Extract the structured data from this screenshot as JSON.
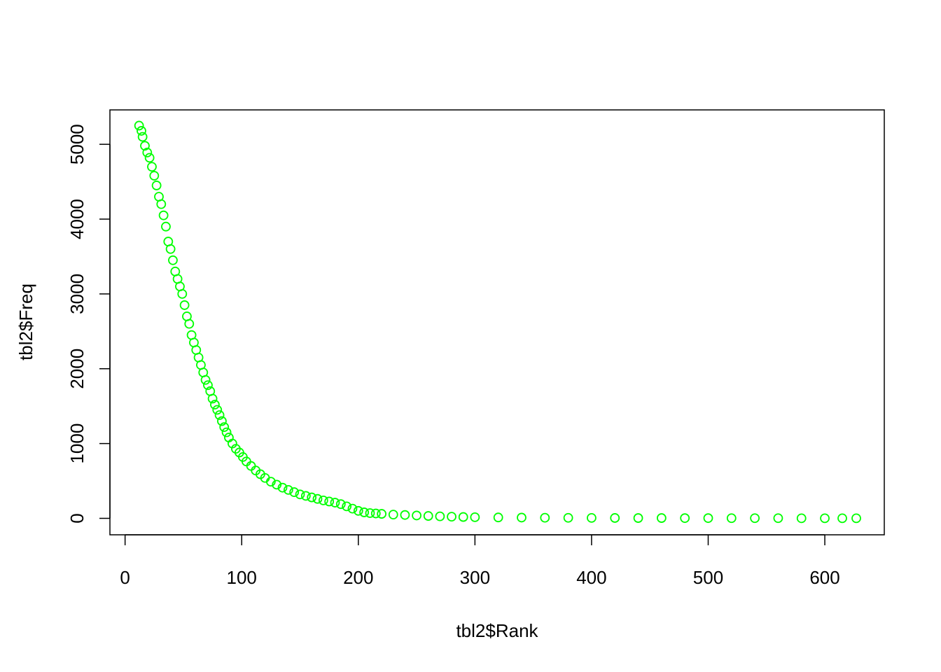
{
  "chart_data": {
    "type": "scatter",
    "title": "",
    "xlabel": "tbl2$Rank",
    "ylabel": "tbl2$Freq",
    "xlim": [
      -13,
      651
    ],
    "ylim": [
      -220,
      5460
    ],
    "x_ticks": [
      0,
      100,
      200,
      300,
      400,
      500,
      600
    ],
    "y_ticks": [
      0,
      1000,
      2000,
      3000,
      4000,
      5000
    ],
    "x_tick_labels": [
      "0",
      "100",
      "200",
      "300",
      "400",
      "500",
      "600"
    ],
    "y_tick_labels": [
      "0",
      "1000",
      "2000",
      "3000",
      "4000",
      "5000"
    ],
    "marker": "open-circle",
    "point_color": "#00ff00",
    "axis_color": "#000000",
    "grid": false,
    "legend": "none",
    "series": [
      {
        "x": [
          12,
          14,
          15,
          17,
          19,
          21,
          23,
          25,
          27,
          29,
          31,
          33,
          35,
          37,
          39,
          41,
          43,
          45,
          47,
          49,
          51,
          53,
          55,
          57,
          59,
          61,
          63,
          65,
          67,
          69,
          71,
          73,
          75,
          77,
          79,
          81,
          83,
          85,
          87,
          89,
          92,
          95,
          98,
          101,
          104,
          108,
          112,
          116,
          120,
          125,
          130,
          135,
          140,
          145,
          150,
          155,
          160,
          165,
          170,
          175,
          180,
          185,
          190,
          195,
          200,
          205,
          210,
          215,
          220,
          230,
          240,
          250,
          260,
          270,
          280,
          290,
          300,
          320,
          340,
          360,
          380,
          400,
          420,
          440,
          460,
          480,
          500,
          520,
          540,
          560,
          580,
          600,
          615,
          627
        ],
        "y": [
          5250,
          5180,
          5100,
          4980,
          4890,
          4820,
          4700,
          4580,
          4450,
          4300,
          4200,
          4050,
          3900,
          3700,
          3600,
          3450,
          3300,
          3200,
          3100,
          3000,
          2850,
          2700,
          2600,
          2450,
          2350,
          2250,
          2150,
          2050,
          1950,
          1850,
          1780,
          1700,
          1600,
          1520,
          1450,
          1380,
          1300,
          1220,
          1150,
          1080,
          1000,
          930,
          880,
          820,
          760,
          700,
          640,
          590,
          540,
          490,
          450,
          410,
          380,
          350,
          320,
          300,
          280,
          260,
          240,
          225,
          210,
          190,
          160,
          130,
          100,
          80,
          70,
          65,
          60,
          50,
          45,
          38,
          32,
          27,
          22,
          18,
          15,
          12,
          10,
          8,
          7,
          6,
          5,
          4,
          4,
          3,
          3,
          2,
          2,
          2,
          1,
          1,
          1,
          1
        ]
      }
    ]
  }
}
